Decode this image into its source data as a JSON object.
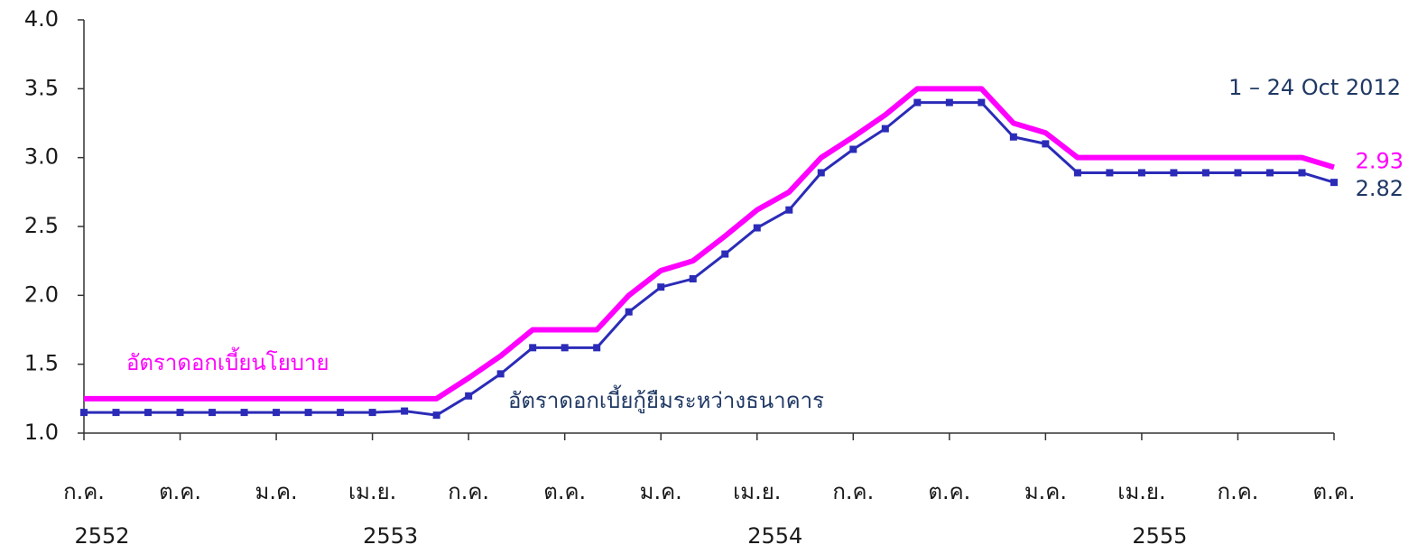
{
  "chart_data": {
    "type": "line",
    "annotation": "1 – 24 Oct 2012",
    "x": [
      0,
      1,
      2,
      3,
      4,
      5,
      6,
      7,
      8,
      9,
      10,
      11,
      12,
      13,
      14,
      15,
      16,
      17,
      18,
      19,
      20,
      21,
      22,
      23,
      24,
      25,
      26,
      27,
      28,
      29,
      30,
      31,
      32,
      33,
      34,
      35,
      36,
      37,
      38,
      39
    ],
    "series": [
      {
        "name": "อัตราดอกเบี้ยนโยบาย",
        "color": "#ff00ff",
        "marker": false,
        "values": [
          1.25,
          1.25,
          1.25,
          1.25,
          1.25,
          1.25,
          1.25,
          1.25,
          1.25,
          1.25,
          1.25,
          1.25,
          1.4,
          1.56,
          1.75,
          1.75,
          1.75,
          2.0,
          2.18,
          2.25,
          2.43,
          2.62,
          2.75,
          3.0,
          3.15,
          3.31,
          3.5,
          3.5,
          3.5,
          3.25,
          3.18,
          3.0,
          3.0,
          3.0,
          3.0,
          3.0,
          3.0,
          3.0,
          3.0,
          2.93
        ]
      },
      {
        "name": "อัตราดอกเบี้ยกู้ยืมระหว่างธนาคาร",
        "color": "#2b2bb8",
        "marker": true,
        "values": [
          1.15,
          1.15,
          1.15,
          1.15,
          1.15,
          1.15,
          1.15,
          1.15,
          1.15,
          1.15,
          1.16,
          1.13,
          1.27,
          1.43,
          1.62,
          1.62,
          1.62,
          1.88,
          2.06,
          2.12,
          2.3,
          2.49,
          2.62,
          2.89,
          3.06,
          3.21,
          3.4,
          3.4,
          3.4,
          3.15,
          3.1,
          2.89,
          2.89,
          2.89,
          2.89,
          2.89,
          2.89,
          2.89,
          2.89,
          2.82
        ]
      }
    ],
    "xlim": [
      0,
      39
    ],
    "xticks": [
      {
        "value": 0,
        "label": "ก.ค."
      },
      {
        "value": 3,
        "label": "ต.ค."
      },
      {
        "value": 6,
        "label": "ม.ค."
      },
      {
        "value": 9,
        "label": "เม.ย."
      },
      {
        "value": 12,
        "label": "ก.ค."
      },
      {
        "value": 15,
        "label": "ต.ค."
      },
      {
        "value": 18,
        "label": "ม.ค."
      },
      {
        "value": 21,
        "label": "เม.ย."
      },
      {
        "value": 24,
        "label": "ก.ค."
      },
      {
        "value": 27,
        "label": "ต.ค."
      },
      {
        "value": 30,
        "label": "ม.ค."
      },
      {
        "value": 33,
        "label": "เม.ย."
      },
      {
        "value": 36,
        "label": "ก.ค."
      },
      {
        "value": 39,
        "label": "ต.ค."
      }
    ],
    "year_labels": [
      {
        "value": 0,
        "label": "2552"
      },
      {
        "value": 9,
        "label": "2553"
      },
      {
        "value": 21,
        "label": "2554"
      },
      {
        "value": 33,
        "label": "2555"
      }
    ],
    "ylim": [
      1.0,
      4.0
    ],
    "yticks": [
      {
        "value": 1.0,
        "label": "1.0"
      },
      {
        "value": 1.5,
        "label": "1.5"
      },
      {
        "value": 2.0,
        "label": "2.0"
      },
      {
        "value": 2.5,
        "label": "2.5"
      },
      {
        "value": 3.0,
        "label": "3.0"
      },
      {
        "value": 3.5,
        "label": "3.5"
      },
      {
        "value": 4.0,
        "label": "4.0"
      }
    ],
    "grid": false
  }
}
